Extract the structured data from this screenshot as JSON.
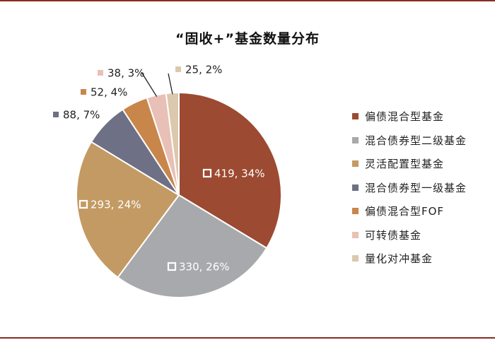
{
  "chart_data": {
    "type": "pie",
    "title": "“固收+”基金数量分布",
    "slices": [
      {
        "name": "偏债混合型基金",
        "value": 419,
        "percent": "34%",
        "label": "419, 34%",
        "color": "#9c4a31"
      },
      {
        "name": "混合债券型二级基金",
        "value": 330,
        "percent": "26%",
        "label": "330, 26%",
        "color": "#a8a9ad"
      },
      {
        "name": "灵活配置型基金",
        "value": 293,
        "percent": "24%",
        "label": "293, 24%",
        "color": "#c39a63"
      },
      {
        "name": "混合债券型一级基金",
        "value": 88,
        "percent": "7%",
        "label": "88, 7%",
        "color": "#6e7085"
      },
      {
        "name": "偏债混合型FOF",
        "value": 52,
        "percent": "4%",
        "label": "52, 4%",
        "color": "#c8864a"
      },
      {
        "name": "可转债基金",
        "value": 38,
        "percent": "3%",
        "label": "38, 3%",
        "color": "#e8c0b6"
      },
      {
        "name": "量化对冲基金",
        "value": 25,
        "percent": "2%",
        "label": "25, 2%",
        "color": "#dcc8ae"
      }
    ],
    "legend_position": "right"
  }
}
